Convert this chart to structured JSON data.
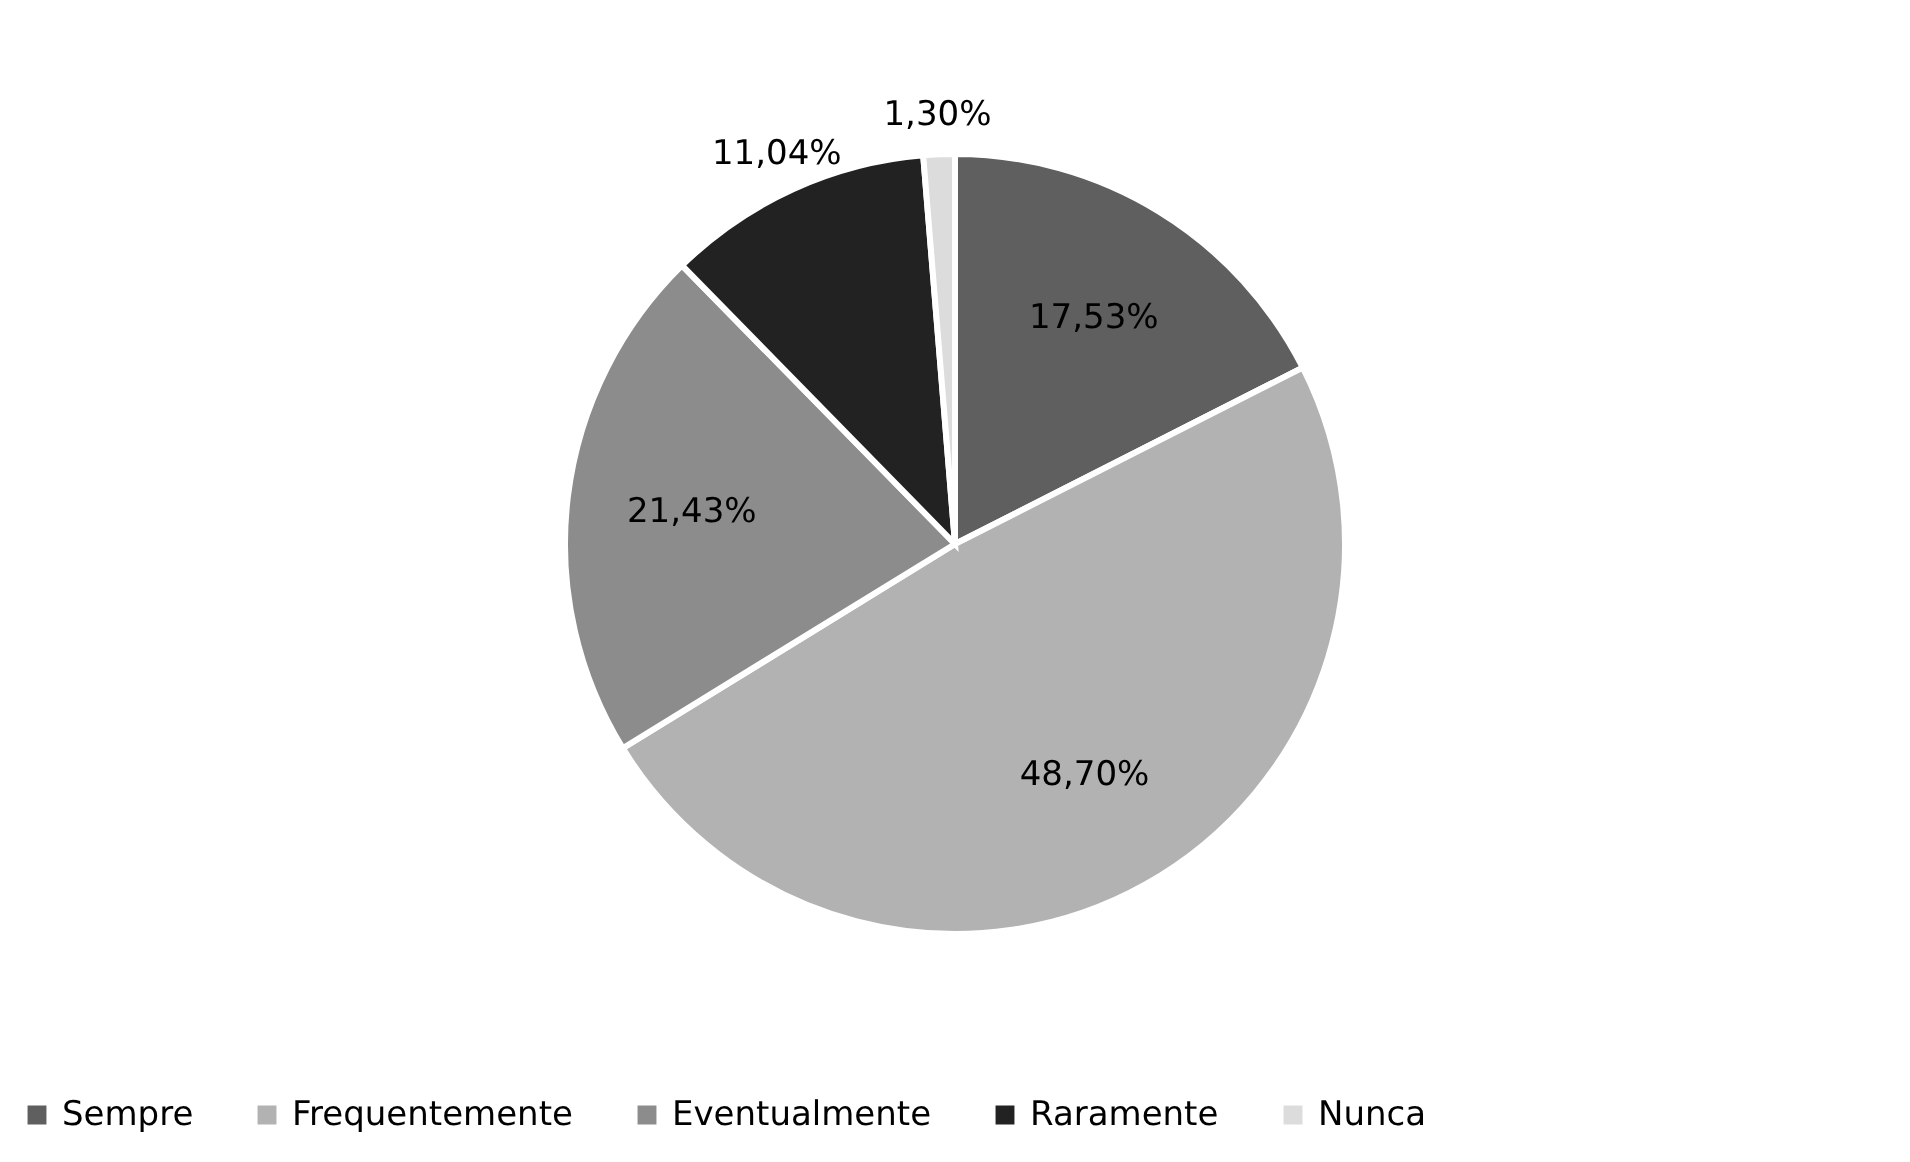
{
  "chart_data": {
    "type": "pie",
    "categories": [
      "Sempre",
      "Frequentemente",
      "Eventualmente",
      "Raramente",
      "Nunca"
    ],
    "values": [
      17.53,
      48.7,
      21.43,
      11.04,
      1.3
    ],
    "colors": [
      "#5f5f5f",
      "#b2b2b2",
      "#8c8c8c",
      "#222222",
      "#dcdcdc"
    ],
    "value_labels": [
      "17,53%",
      "48,70%",
      "21,43%",
      "11,04%",
      "1,30%"
    ],
    "legend": "bottom"
  }
}
